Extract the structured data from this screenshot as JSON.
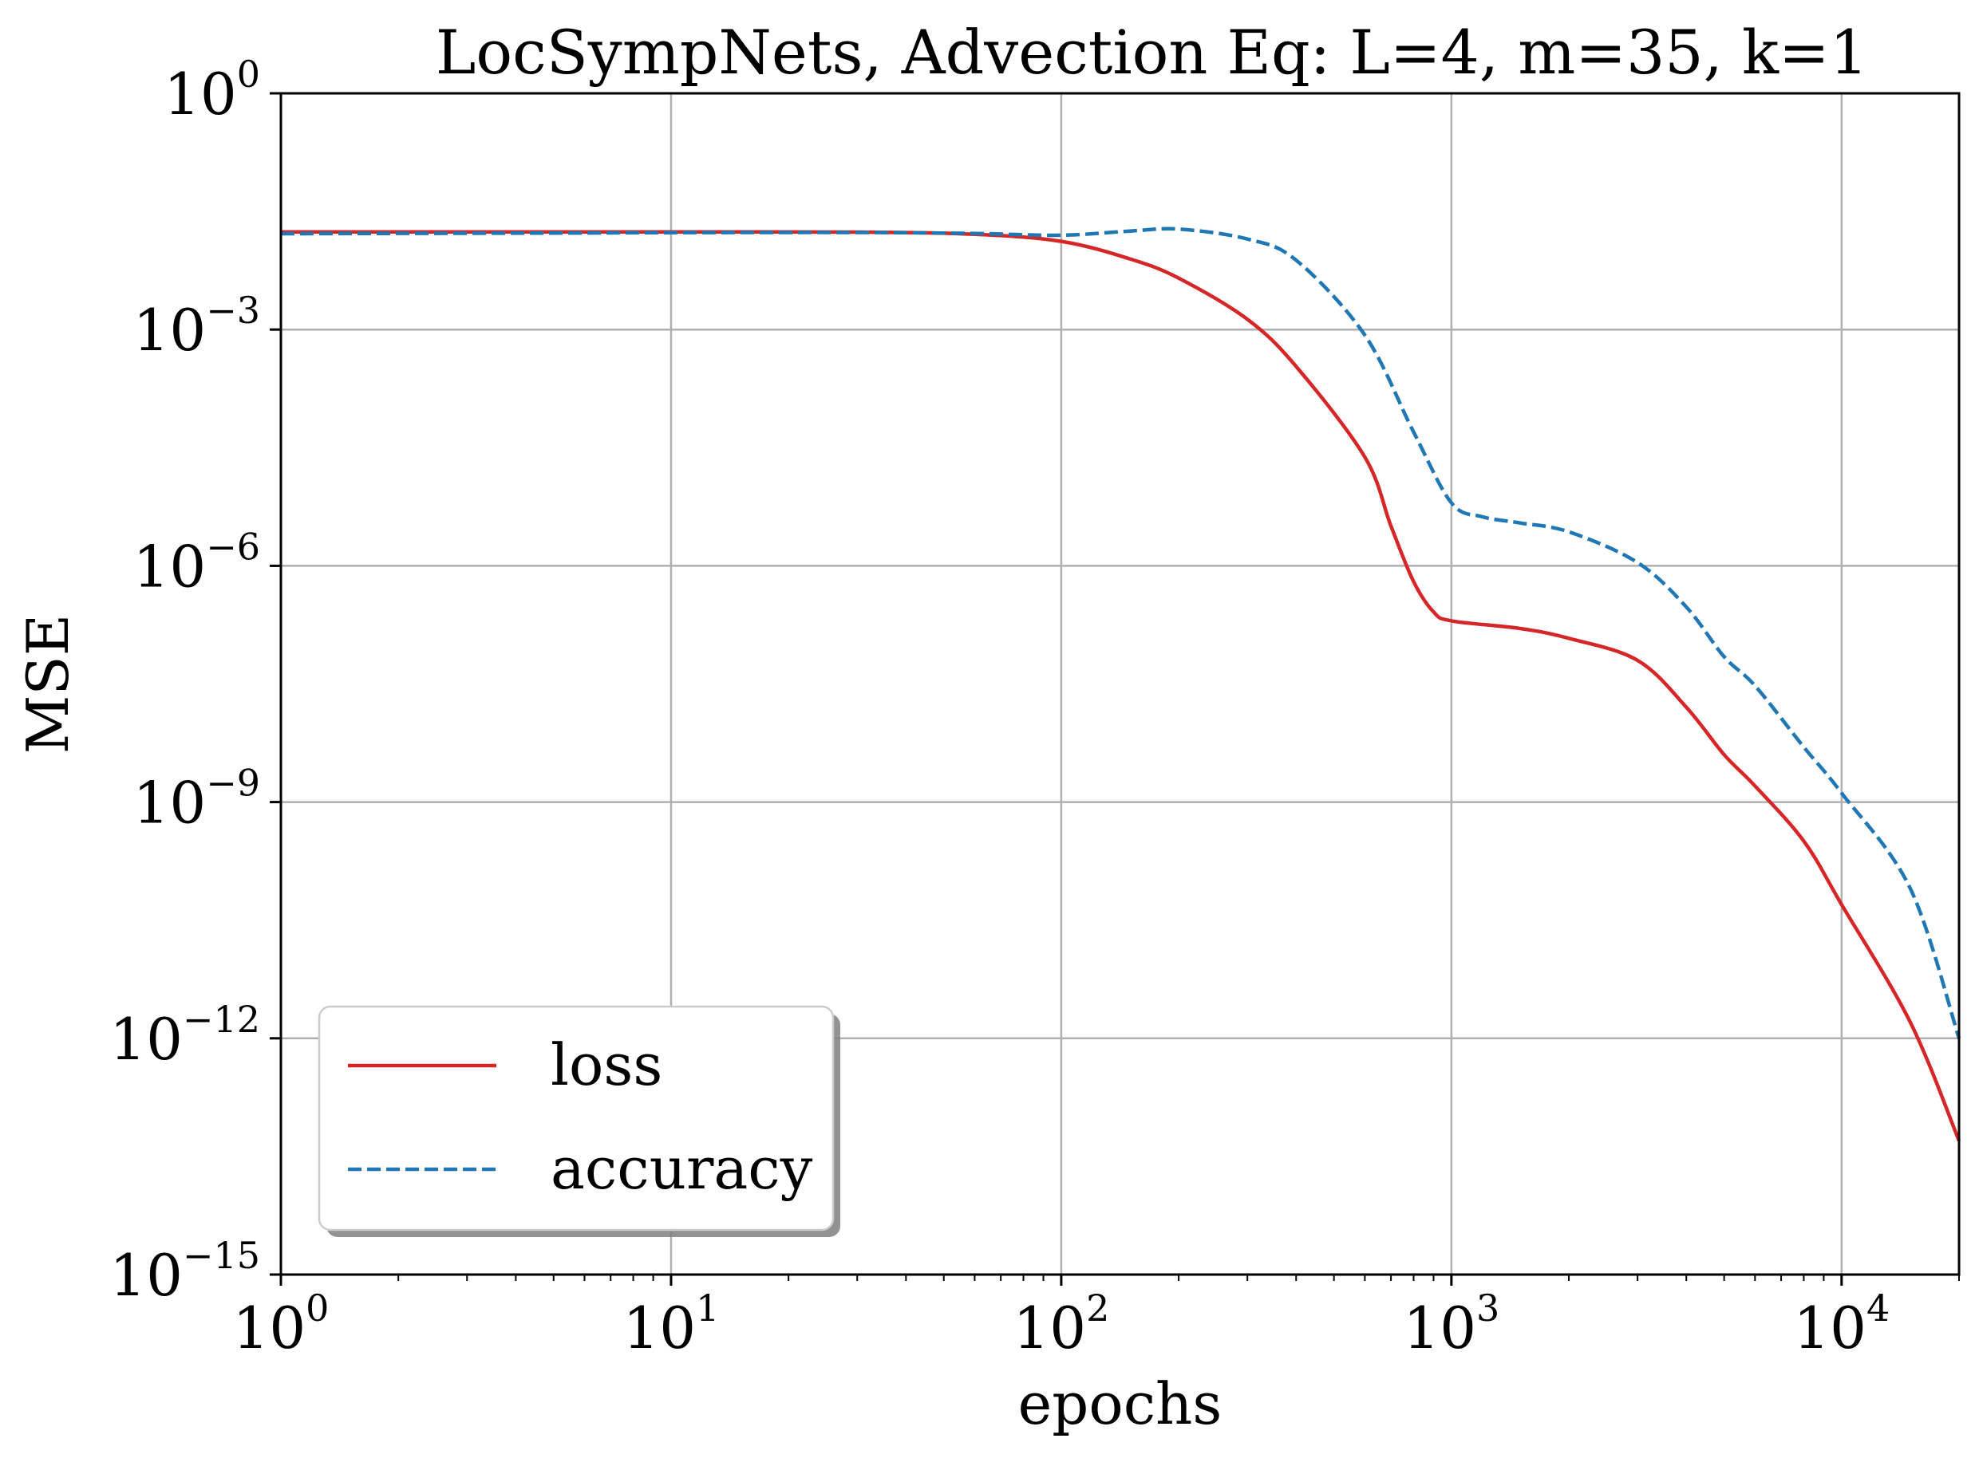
{
  "chart_data": {
    "type": "line",
    "title": "LocSympNets, Advection Eq: L=4, m=35, k=1",
    "xlabel": "epochs",
    "ylabel": "MSE",
    "xscale": "log",
    "yscale": "log",
    "xlim": [
      1,
      20000
    ],
    "ylim": [
      1e-15,
      1
    ],
    "grid": true,
    "legend_position": "lower-left",
    "x_ticks": [
      {
        "base": "10",
        "exp": "0",
        "value": 1
      },
      {
        "base": "10",
        "exp": "1",
        "value": 10
      },
      {
        "base": "10",
        "exp": "2",
        "value": 100
      },
      {
        "base": "10",
        "exp": "3",
        "value": 1000
      },
      {
        "base": "10",
        "exp": "4",
        "value": 10000
      }
    ],
    "y_ticks": [
      {
        "base": "10",
        "exp": "0",
        "value": 1
      },
      {
        "base": "10",
        "exp": "−3",
        "value": 0.001
      },
      {
        "base": "10",
        "exp": "−6",
        "value": 1e-06
      },
      {
        "base": "10",
        "exp": "−9",
        "value": 1e-09
      },
      {
        "base": "10",
        "exp": "−12",
        "value": 1e-12
      },
      {
        "base": "10",
        "exp": "−15",
        "value": 1e-15
      }
    ],
    "series": [
      {
        "name": "loss",
        "color": "#d62728",
        "style": "solid",
        "x": [
          1,
          5,
          10,
          30,
          60,
          100,
          150,
          200,
          300,
          400,
          600,
          700,
          800,
          900,
          1000,
          1500,
          2000,
          3000,
          4000,
          5000,
          6000,
          8000,
          10000,
          15000,
          20000
        ],
        "y": [
          0.0174,
          0.0174,
          0.0174,
          0.0173,
          0.0162,
          0.0132,
          0.0079,
          0.0045,
          0.00135,
          0.00034,
          2.4e-05,
          3.2e-06,
          6.3e-07,
          2.6e-07,
          2e-07,
          1.6e-07,
          1.2e-07,
          6.3e-08,
          1.6e-08,
          4e-09,
          1.6e-09,
          3.2e-10,
          5e-11,
          1.6e-12,
          5e-14
        ]
      },
      {
        "name": "accuracy",
        "color": "#1f77b4",
        "style": "dashed",
        "x": [
          1,
          5,
          10,
          30,
          60,
          100,
          150,
          200,
          300,
          400,
          600,
          800,
          1000,
          1200,
          1500,
          2000,
          3000,
          4000,
          5000,
          6000,
          8000,
          10000,
          15000,
          20000
        ],
        "y": [
          0.0165,
          0.0168,
          0.017,
          0.0171,
          0.0166,
          0.0158,
          0.0178,
          0.0189,
          0.0141,
          0.0076,
          0.00085,
          5e-05,
          6.3e-06,
          4.2e-06,
          3.5e-06,
          2.7e-06,
          1.1e-06,
          3e-07,
          7e-08,
          3e-08,
          5e-09,
          1.3e-09,
          8e-11,
          1e-12
        ]
      }
    ]
  }
}
